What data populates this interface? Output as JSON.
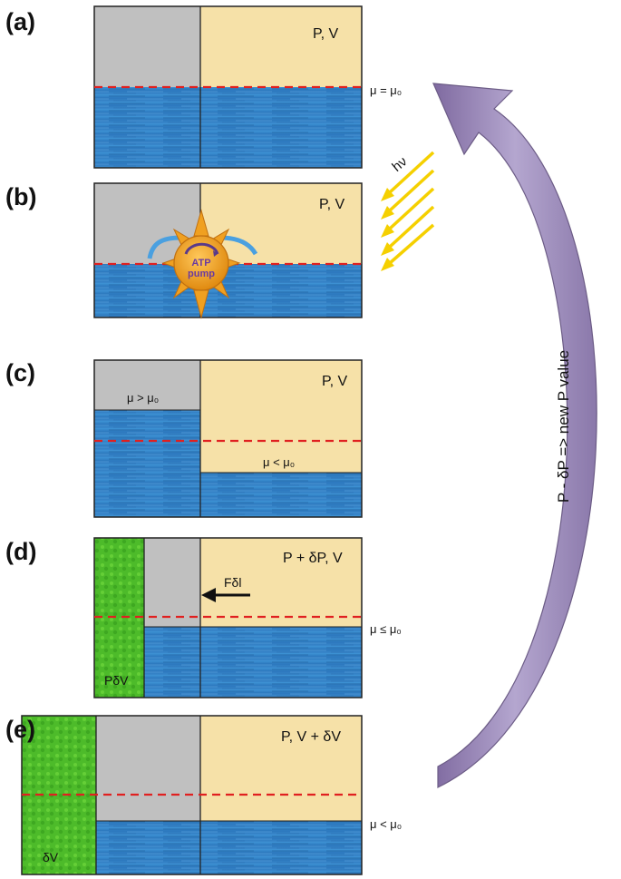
{
  "colors": {
    "gray": "#c0c0c0",
    "gas": "#f6e1a8",
    "water_light": "#3a8fd1",
    "water_dark": "#1f5f9f",
    "green": "#4dbb2a",
    "red_dashed": "#e02020",
    "arrow_purple": "#9d8bb8",
    "sun": "#f0a020",
    "light_rays": "#f5d000"
  },
  "panels": [
    {
      "letter": "(a)",
      "title": "P, V",
      "mu_label": "μ = μ₀"
    },
    {
      "letter": "(b)",
      "title": "P, V",
      "pump_label_1": "ATP",
      "pump_label_2": "pump",
      "light_label": "hν"
    },
    {
      "letter": "(c)",
      "title": "P, V",
      "mu_left": "μ  > μ₀",
      "mu_right": "μ < μ₀"
    },
    {
      "letter": "(d)",
      "title": "P + δP, V",
      "force_label": "Fδl",
      "work_label": "PδV",
      "mu_label": "μ ≤ μ₀"
    },
    {
      "letter": "(e)",
      "title": "P, V + δV",
      "volume_label": "δV",
      "mu_label": "μ < μ₀"
    }
  ],
  "cycle_arrow_label": "P - δP => new P value"
}
